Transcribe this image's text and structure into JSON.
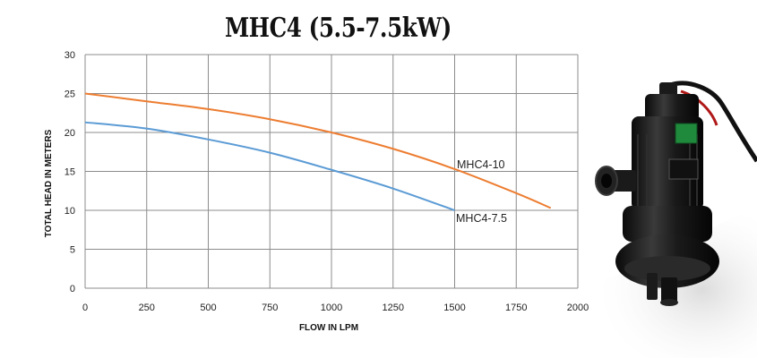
{
  "chart_data": {
    "type": "line",
    "title": "MHC4 (5.5-7.5kW)",
    "xlabel": "FLOW IN LPM",
    "ylabel": "TOTAL HEAD IN METERS",
    "xlim": [
      0,
      2000
    ],
    "ylim": [
      0,
      30
    ],
    "xticks": [
      0,
      250,
      500,
      750,
      1000,
      1250,
      1500,
      1750,
      2000
    ],
    "yticks": [
      0,
      5,
      10,
      15,
      20,
      25,
      30
    ],
    "grid": true,
    "legend": "inline labels at line ends",
    "series": [
      {
        "name": "MHC4-10",
        "color": "#ED7D31",
        "x": [
          0,
          250,
          500,
          750,
          1000,
          1250,
          1500,
          1750,
          1890
        ],
        "y": [
          25.0,
          24.0,
          23.0,
          21.7,
          20.0,
          17.9,
          15.3,
          12.2,
          10.3
        ]
      },
      {
        "name": "MHC4-7.5",
        "color": "#5B9BD5",
        "x": [
          0,
          250,
          500,
          750,
          1000,
          1250,
          1500
        ],
        "y": [
          21.3,
          20.5,
          19.1,
          17.4,
          15.2,
          12.8,
          10.0
        ]
      }
    ]
  }
}
